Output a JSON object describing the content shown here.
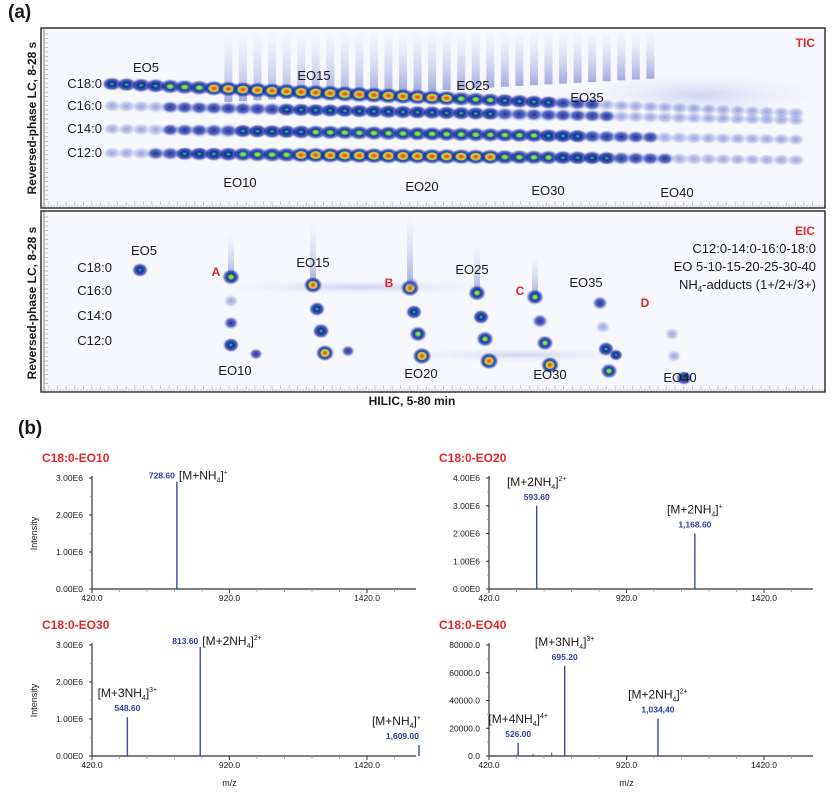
{
  "figure": {
    "panel_a_label": "(a)",
    "panel_b_label": "(b)"
  },
  "chart_data": [
    {
      "type": "heatmap",
      "id": "tic",
      "title": "TIC",
      "ylabel": "Reversed-phase LC, 8-28 s",
      "xlabel": "",
      "row_labels": [
        "C18:0",
        "C16:0",
        "C14:0",
        "C12:0"
      ],
      "series_labels": [
        {
          "text": "EO5",
          "pos": "top",
          "eo": 5
        },
        {
          "text": "EO15",
          "pos": "top",
          "eo": 15
        },
        {
          "text": "EO25",
          "pos": "top",
          "eo": 25
        },
        {
          "text": "EO35",
          "pos": "top",
          "eo": 35
        },
        {
          "text": "EO10",
          "pos": "bottom",
          "eo": 10
        },
        {
          "text": "EO20",
          "pos": "bottom",
          "eo": 20
        },
        {
          "text": "EO30",
          "pos": "bottom",
          "eo": 30
        },
        {
          "text": "EO40",
          "pos": "bottom",
          "eo": 40
        }
      ],
      "eo_range": [
        3,
        50
      ],
      "rows": [
        {
          "name": "C18:0",
          "intensity": [
            0.45,
            0.5,
            0.55,
            0.6,
            0.7,
            0.75,
            0.78,
            0.8,
            0.82,
            0.85,
            0.88,
            0.9,
            0.93,
            0.95,
            0.97,
            0.98,
            1.0,
            0.98,
            0.95,
            0.95,
            0.9,
            0.88,
            0.85,
            0.8,
            0.72,
            0.68,
            0.62,
            0.6,
            0.55,
            0.5,
            0.45,
            0.4,
            0.35,
            0.25,
            0.15,
            0.12,
            0.1,
            0.1,
            0.08,
            0.08,
            0.07,
            0.06,
            0.05,
            0.05,
            0.04,
            0.04,
            0.03,
            0.03
          ]
        },
        {
          "name": "C16:0",
          "intensity": [
            0.1,
            0.12,
            0.15,
            0.2,
            0.25,
            0.28,
            0.32,
            0.35,
            0.38,
            0.4,
            0.42,
            0.44,
            0.45,
            0.45,
            0.46,
            0.47,
            0.48,
            0.5,
            0.5,
            0.52,
            0.5,
            0.5,
            0.5,
            0.5,
            0.48,
            0.45,
            0.45,
            0.42,
            0.4,
            0.38,
            0.35,
            0.32,
            0.3,
            0.25,
            0.22,
            0.2,
            0.18,
            0.16,
            0.15,
            0.14,
            0.13,
            0.12,
            0.1,
            0.1,
            0.09,
            0.08,
            0.07,
            0.06
          ]
        },
        {
          "name": "C14:0",
          "intensity": [
            0.1,
            0.12,
            0.15,
            0.2,
            0.25,
            0.3,
            0.35,
            0.38,
            0.42,
            0.45,
            0.5,
            0.52,
            0.55,
            0.6,
            0.62,
            0.65,
            0.65,
            0.66,
            0.68,
            0.7,
            0.68,
            0.7,
            0.7,
            0.72,
            0.7,
            0.7,
            0.68,
            0.65,
            0.65,
            0.62,
            0.6,
            0.55,
            0.5,
            0.42,
            0.38,
            0.35,
            0.3,
            0.25,
            0.2,
            0.18,
            0.15,
            0.12,
            0.1,
            0.1,
            0.08,
            0.07,
            0.06,
            0.05
          ]
        },
        {
          "name": "C12:0",
          "intensity": [
            0.12,
            0.15,
            0.2,
            0.3,
            0.38,
            0.45,
            0.5,
            0.55,
            0.6,
            0.65,
            0.7,
            0.75,
            0.78,
            0.82,
            0.85,
            0.88,
            0.9,
            0.9,
            0.92,
            0.92,
            0.9,
            0.9,
            0.88,
            0.88,
            0.85,
            0.82,
            0.8,
            0.78,
            0.72,
            0.68,
            0.65,
            0.6,
            0.55,
            0.5,
            0.45,
            0.4,
            0.35,
            0.3,
            0.25,
            0.2,
            0.18,
            0.15,
            0.12,
            0.1,
            0.08,
            0.07,
            0.06,
            0.05
          ]
        }
      ]
    },
    {
      "type": "heatmap",
      "id": "eic",
      "title": "EIC",
      "ylabel": "Reversed-phase LC, 8-28 s",
      "xlabel": "HILIC, 5-80 min",
      "row_labels": [
        "C18:0",
        "C16:0",
        "C14:0",
        "C12:0"
      ],
      "legend_lines": [
        "C12:0-14:0-16:0-18:0",
        "EO 5-10-15-20-25-30-40"
      ],
      "legend_adducts": {
        "prefix": "NH",
        "sub": "4",
        "suffix": "-adducts (1+/2+/3+)"
      },
      "markers": [
        "A",
        "B",
        "C",
        "D"
      ],
      "series_labels": [
        {
          "text": "EO5",
          "pos": "top"
        },
        {
          "text": "EO15",
          "pos": "top"
        },
        {
          "text": "EO25",
          "pos": "top"
        },
        {
          "text": "EO35",
          "pos": "top"
        },
        {
          "text": "EO10",
          "pos": "bottom"
        },
        {
          "text": "EO20",
          "pos": "bottom"
        },
        {
          "text": "EO30",
          "pos": "bottom"
        },
        {
          "text": "EO40",
          "pos": "bottom"
        }
      ],
      "spots": [
        {
          "eo": 5,
          "row": "C18:0",
          "intensity": 0.45
        },
        {
          "eo": 10,
          "row": "C18:0",
          "intensity": 0.75
        },
        {
          "eo": 10,
          "row": "C16:0",
          "intensity": 0.2
        },
        {
          "eo": 10,
          "row": "C14:0",
          "intensity": 0.25
        },
        {
          "eo": 10,
          "row": "C12:0",
          "intensity": 0.5
        },
        {
          "eo": 15,
          "row": "C18:0",
          "intensity": 0.85
        },
        {
          "eo": 15,
          "row": "C16:0",
          "intensity": 0.45
        },
        {
          "eo": 15,
          "row": "C14:0",
          "intensity": 0.6
        },
        {
          "eo": 15,
          "row": "C12:0",
          "intensity": 0.82
        },
        {
          "eo": 20,
          "row": "C18:0",
          "intensity": 0.9
        },
        {
          "eo": 20,
          "row": "C16:0",
          "intensity": 0.45
        },
        {
          "eo": 20,
          "row": "C14:0",
          "intensity": 0.7
        },
        {
          "eo": 20,
          "row": "C12:0",
          "intensity": 0.92
        },
        {
          "eo": 25,
          "row": "C18:0",
          "intensity": 0.75
        },
        {
          "eo": 25,
          "row": "C16:0",
          "intensity": 0.5
        },
        {
          "eo": 25,
          "row": "C14:0",
          "intensity": 0.7
        },
        {
          "eo": 25,
          "row": "C12:0",
          "intensity": 0.92
        },
        {
          "eo": 30,
          "row": "C18:0",
          "intensity": 0.7
        },
        {
          "eo": 30,
          "row": "C16:0",
          "intensity": 0.4
        },
        {
          "eo": 30,
          "row": "C14:0",
          "intensity": 0.62
        },
        {
          "eo": 30,
          "row": "C12:0",
          "intensity": 0.82
        },
        {
          "eo": 35,
          "row": "C18:0",
          "intensity": 0.35
        },
        {
          "eo": 35,
          "row": "C16:0",
          "intensity": 0.2
        },
        {
          "eo": 35,
          "row": "C14:0",
          "intensity": 0.5
        },
        {
          "eo": 35,
          "row": "C12:0",
          "intensity": 0.62
        },
        {
          "eo": 40,
          "row": "C16:0",
          "intensity": 0.15
        },
        {
          "eo": 40,
          "row": "C14:0",
          "intensity": 0.15
        },
        {
          "eo": 40,
          "row": "C12:0",
          "intensity": 0.45
        }
      ]
    },
    {
      "type": "bar",
      "id": "eo10",
      "title": "C18:0-EO10",
      "xlabel": "",
      "ylabel": "Intensity",
      "xlim": [
        420,
        1670
      ],
      "ylim": [
        0,
        3000000
      ],
      "xticks": [
        420.0,
        920.0,
        1420.0
      ],
      "xtick_labels": [
        "420.0",
        "920.0",
        "1420.0"
      ],
      "yticks": [
        0,
        1000000,
        2000000,
        3000000
      ],
      "ytick_labels": [
        "0.00E0",
        "1.00E6",
        "2.00E6",
        "3.00E6"
      ],
      "peaks": [
        {
          "mz": 728.6,
          "intensity": 2900000,
          "mz_label": "728.60",
          "ion": {
            "base": "[M+NH",
            "sub": "4",
            "close": "]",
            "sup": "+"
          },
          "label_side": "right"
        }
      ],
      "noise": []
    },
    {
      "type": "bar",
      "id": "eo20",
      "title": "C18:0-EO20",
      "xlabel": "",
      "ylabel": "",
      "xlim": [
        420,
        1670
      ],
      "ylim": [
        0,
        4000000
      ],
      "xticks": [
        420.0,
        920.0,
        1420.0
      ],
      "xtick_labels": [
        "420.0",
        "920.0",
        "1420.0"
      ],
      "yticks": [
        0,
        1000000,
        2000000,
        3000000,
        4000000
      ],
      "ytick_labels": [
        "0.00E0",
        "1.00E6",
        "2.00E6",
        "3.00E6",
        "4.00E6"
      ],
      "peaks": [
        {
          "mz": 593.6,
          "intensity": 3000000,
          "mz_label": "593.60",
          "ion": {
            "base": "[M+2NH",
            "sub": "4",
            "close": "]",
            "sup": "2+"
          },
          "label_side": "above"
        },
        {
          "mz": 1168.6,
          "intensity": 2000000,
          "mz_label": "1,168.60",
          "ion": {
            "base": "[M+2NH",
            "sub": "4",
            "close": "]",
            "sup": "+"
          },
          "label_side": "above"
        }
      ],
      "noise": []
    },
    {
      "type": "bar",
      "id": "eo30",
      "title": "C18:0-EO30",
      "xlabel": "m/z",
      "ylabel": "Intensity",
      "xlim": [
        420,
        1670
      ],
      "ylim": [
        0,
        3000000
      ],
      "xticks": [
        420.0,
        920.0,
        1420.0
      ],
      "xtick_labels": [
        "420.0",
        "920.0",
        "1420.0"
      ],
      "yticks": [
        0,
        1000000,
        2000000,
        3000000
      ],
      "ytick_labels": [
        "0.00E0",
        "1.00E6",
        "2.00E6",
        "3.00E6"
      ],
      "peaks": [
        {
          "mz": 548.6,
          "intensity": 1050000,
          "mz_label": "548.60",
          "ion": {
            "base": "[M+3NH",
            "sub": "4",
            "close": "]",
            "sup": "3+"
          },
          "label_side": "above"
        },
        {
          "mz": 813.6,
          "intensity": 2950000,
          "mz_label": "813.60",
          "ion": {
            "base": "[M+2NH",
            "sub": "4",
            "close": "]",
            "sup": "2+"
          },
          "label_side": "right"
        },
        {
          "mz": 1609.0,
          "intensity": 300000,
          "mz_label": "1,609.00",
          "ion": {
            "base": "[M+NH",
            "sub": "4",
            "close": "]",
            "sup": "+"
          },
          "label_side": "above-left"
        }
      ],
      "noise": []
    },
    {
      "type": "bar",
      "id": "eo40",
      "title": "C18:0-EO40",
      "xlabel": "m/z",
      "ylabel": "",
      "xlim": [
        420,
        1670
      ],
      "ylim": [
        0,
        80000
      ],
      "xticks": [
        420.0,
        920.0,
        1420.0
      ],
      "xtick_labels": [
        "420.0",
        "920.0",
        "1420.0"
      ],
      "yticks": [
        0,
        20000,
        40000,
        60000,
        80000
      ],
      "ytick_labels": [
        "0.0",
        "20000.0",
        "40000.0",
        "60000.0",
        "80000.0"
      ],
      "peaks": [
        {
          "mz": 526.0,
          "intensity": 9500,
          "mz_label": "526.00",
          "ion": {
            "base": "[M+4NH",
            "sub": "4",
            "close": "]",
            "sup": "4+"
          },
          "label_side": "above"
        },
        {
          "mz": 695.2,
          "intensity": 65000,
          "mz_label": "695.20",
          "ion": {
            "base": "[M+3NH",
            "sub": "4",
            "close": "]",
            "sup": "3+"
          },
          "label_side": "above"
        },
        {
          "mz": 1034.4,
          "intensity": 27000,
          "mz_label": "1,034,40",
          "ion": {
            "base": "[M+2NH",
            "sub": "4",
            "close": "]",
            "sup": "2+"
          },
          "label_side": "above"
        }
      ],
      "noise": [
        {
          "mz": 580,
          "intensity": 1500
        },
        {
          "mz": 648,
          "intensity": 2500
        },
        {
          "mz": 520,
          "intensity": 800
        }
      ]
    }
  ],
  "colors": {
    "panel_title": "#e0282a",
    "peak_line": "#3b4aa8",
    "mz_label": "#2e3f9e",
    "axis": "#333333",
    "heat_low": "#0a1a8c",
    "heat_mid": "#25c16a",
    "heat_high": "#e62a1e"
  }
}
